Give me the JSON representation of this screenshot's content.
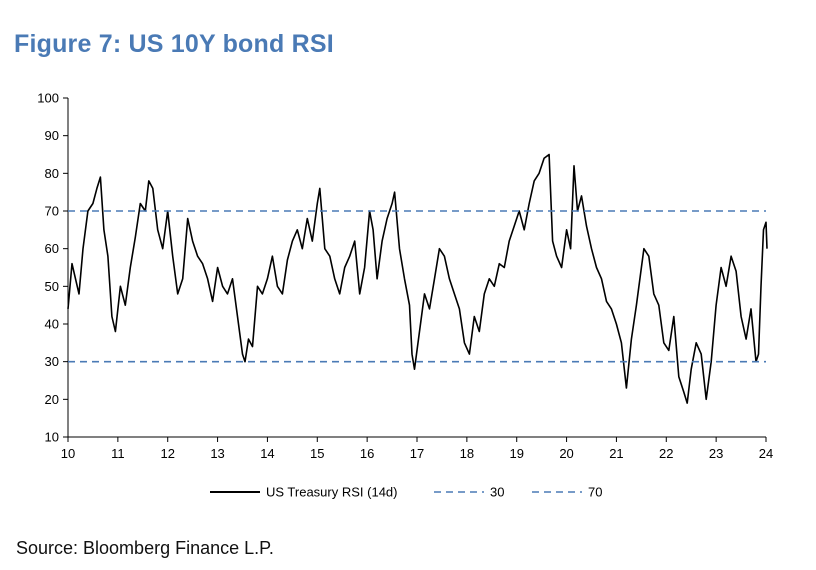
{
  "title": "Figure 7: US 10Y bond RSI",
  "source": "Source: Bloomberg Finance L.P.",
  "chart_data": {
    "type": "line",
    "title": "Figure 7: US 10Y bond RSI",
    "xlabel": "",
    "ylabel": "",
    "xlim": [
      10,
      24
    ],
    "ylim": [
      10,
      100
    ],
    "x_ticks": [
      "10",
      "11",
      "12",
      "13",
      "14",
      "15",
      "16",
      "17",
      "18",
      "19",
      "20",
      "21",
      "22",
      "23",
      "24"
    ],
    "y_ticks": [
      "10",
      "20",
      "30",
      "40",
      "50",
      "60",
      "70",
      "80",
      "90",
      "100"
    ],
    "grid": false,
    "legend_position": "bottom",
    "series": [
      {
        "name": "US Treasury RSI (14d)",
        "color": "#000000",
        "style": "solid",
        "points": [
          [
            10.0,
            44
          ],
          [
            10.08,
            56
          ],
          [
            10.15,
            52
          ],
          [
            10.22,
            48
          ],
          [
            10.3,
            60
          ],
          [
            10.4,
            70
          ],
          [
            10.5,
            72
          ],
          [
            10.58,
            76
          ],
          [
            10.65,
            79
          ],
          [
            10.72,
            65
          ],
          [
            10.8,
            58
          ],
          [
            10.88,
            42
          ],
          [
            10.95,
            38
          ],
          [
            11.05,
            50
          ],
          [
            11.15,
            45
          ],
          [
            11.25,
            55
          ],
          [
            11.35,
            63
          ],
          [
            11.45,
            72
          ],
          [
            11.55,
            70
          ],
          [
            11.62,
            78
          ],
          [
            11.7,
            76
          ],
          [
            11.8,
            65
          ],
          [
            11.9,
            60
          ],
          [
            12.0,
            70
          ],
          [
            12.1,
            58
          ],
          [
            12.2,
            48
          ],
          [
            12.3,
            52
          ],
          [
            12.4,
            68
          ],
          [
            12.5,
            62
          ],
          [
            12.6,
            58
          ],
          [
            12.7,
            56
          ],
          [
            12.8,
            52
          ],
          [
            12.9,
            46
          ],
          [
            13.0,
            55
          ],
          [
            13.1,
            50
          ],
          [
            13.2,
            48
          ],
          [
            13.3,
            52
          ],
          [
            13.4,
            42
          ],
          [
            13.5,
            32
          ],
          [
            13.55,
            30
          ],
          [
            13.62,
            36
          ],
          [
            13.7,
            34
          ],
          [
            13.8,
            50
          ],
          [
            13.9,
            48
          ],
          [
            14.0,
            52
          ],
          [
            14.1,
            58
          ],
          [
            14.2,
            50
          ],
          [
            14.3,
            48
          ],
          [
            14.4,
            57
          ],
          [
            14.5,
            62
          ],
          [
            14.6,
            65
          ],
          [
            14.7,
            60
          ],
          [
            14.8,
            68
          ],
          [
            14.9,
            62
          ],
          [
            15.0,
            72
          ],
          [
            15.05,
            76
          ],
          [
            15.15,
            60
          ],
          [
            15.25,
            58
          ],
          [
            15.35,
            52
          ],
          [
            15.45,
            48
          ],
          [
            15.55,
            55
          ],
          [
            15.65,
            58
          ],
          [
            15.75,
            62
          ],
          [
            15.85,
            48
          ],
          [
            15.95,
            55
          ],
          [
            16.05,
            70
          ],
          [
            16.12,
            65
          ],
          [
            16.2,
            52
          ],
          [
            16.3,
            62
          ],
          [
            16.4,
            68
          ],
          [
            16.5,
            72
          ],
          [
            16.55,
            75
          ],
          [
            16.65,
            60
          ],
          [
            16.75,
            52
          ],
          [
            16.85,
            45
          ],
          [
            16.9,
            32
          ],
          [
            16.95,
            28
          ],
          [
            17.05,
            38
          ],
          [
            17.15,
            48
          ],
          [
            17.25,
            44
          ],
          [
            17.35,
            52
          ],
          [
            17.45,
            60
          ],
          [
            17.55,
            58
          ],
          [
            17.65,
            52
          ],
          [
            17.75,
            48
          ],
          [
            17.85,
            44
          ],
          [
            17.95,
            35
          ],
          [
            18.05,
            32
          ],
          [
            18.15,
            42
          ],
          [
            18.25,
            38
          ],
          [
            18.35,
            48
          ],
          [
            18.45,
            52
          ],
          [
            18.55,
            50
          ],
          [
            18.65,
            56
          ],
          [
            18.75,
            55
          ],
          [
            18.85,
            62
          ],
          [
            18.95,
            66
          ],
          [
            19.05,
            70
          ],
          [
            19.15,
            65
          ],
          [
            19.25,
            72
          ],
          [
            19.35,
            78
          ],
          [
            19.45,
            80
          ],
          [
            19.55,
            84
          ],
          [
            19.65,
            85
          ],
          [
            19.72,
            62
          ],
          [
            19.8,
            58
          ],
          [
            19.9,
            55
          ],
          [
            20.0,
            65
          ],
          [
            20.08,
            60
          ],
          [
            20.15,
            82
          ],
          [
            20.22,
            70
          ],
          [
            20.3,
            74
          ],
          [
            20.4,
            66
          ],
          [
            20.5,
            60
          ],
          [
            20.6,
            55
          ],
          [
            20.7,
            52
          ],
          [
            20.8,
            46
          ],
          [
            20.9,
            44
          ],
          [
            21.0,
            40
          ],
          [
            21.1,
            35
          ],
          [
            21.2,
            23
          ],
          [
            21.3,
            36
          ],
          [
            21.4,
            45
          ],
          [
            21.5,
            55
          ],
          [
            21.55,
            60
          ],
          [
            21.65,
            58
          ],
          [
            21.75,
            48
          ],
          [
            21.85,
            45
          ],
          [
            21.95,
            35
          ],
          [
            22.05,
            33
          ],
          [
            22.15,
            42
          ],
          [
            22.25,
            26
          ],
          [
            22.35,
            22
          ],
          [
            22.42,
            19
          ],
          [
            22.5,
            28
          ],
          [
            22.6,
            35
          ],
          [
            22.7,
            32
          ],
          [
            22.8,
            20
          ],
          [
            22.9,
            30
          ],
          [
            23.0,
            45
          ],
          [
            23.1,
            55
          ],
          [
            23.2,
            50
          ],
          [
            23.3,
            58
          ],
          [
            23.4,
            54
          ],
          [
            23.5,
            42
          ],
          [
            23.6,
            36
          ],
          [
            23.7,
            44
          ],
          [
            23.8,
            30
          ],
          [
            23.85,
            32
          ],
          [
            23.9,
            50
          ],
          [
            23.95,
            65
          ],
          [
            24.0,
            67
          ],
          [
            24.02,
            60
          ]
        ]
      },
      {
        "name": "30",
        "color": "#4a7ab5",
        "style": "dashed",
        "constant": 30
      },
      {
        "name": "70",
        "color": "#4a7ab5",
        "style": "dashed",
        "constant": 70
      }
    ]
  }
}
